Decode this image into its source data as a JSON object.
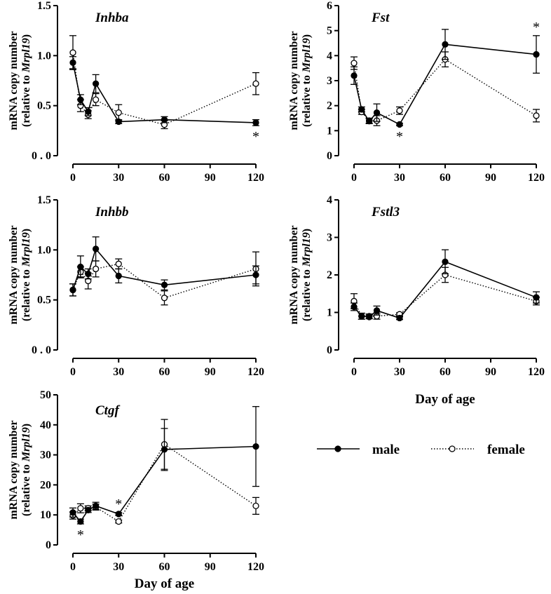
{
  "chart_data": [
    {
      "type": "line",
      "title": "Inhba",
      "xlabel": "",
      "ylabel_line1": "mRNA copy number",
      "ylabel_line2_prefix": "(relative to ",
      "ylabel_line2_italic": "Mrpl19",
      "ylabel_line2_suffix": ")",
      "x": [
        0,
        5,
        10,
        15,
        30,
        60,
        120
      ],
      "ylim": [
        0,
        1.5
      ],
      "yticks": [
        0,
        0.5,
        1.0,
        1.5
      ],
      "yticklabels": [
        "0 . 0",
        "0.5",
        "1.0",
        "1.5"
      ],
      "xticks": [
        0,
        30,
        60,
        90,
        120
      ],
      "xticklabels": [
        "0",
        "30",
        "60",
        "90",
        "120"
      ],
      "series": [
        {
          "name": "male",
          "values": [
            0.93,
            0.56,
            0.44,
            0.72,
            0.34,
            0.36,
            0.33
          ],
          "errors": [
            0.06,
            0.05,
            0.04,
            0.09,
            0.02,
            0.03,
            0.03
          ]
        },
        {
          "name": "female",
          "values": [
            1.03,
            0.5,
            0.41,
            0.56,
            0.43,
            0.31,
            0.72
          ],
          "errors": [
            0.17,
            0.06,
            0.04,
            0.06,
            0.08,
            0.04,
            0.11
          ]
        }
      ],
      "annotations": [
        {
          "x": 120,
          "text": "*",
          "position": "below"
        }
      ]
    },
    {
      "type": "line",
      "title": "Fst",
      "xlabel": "",
      "ylabel_line1": "mRNA copy number",
      "ylabel_line2_prefix": "(relative to ",
      "ylabel_line2_italic": "Mrpl19",
      "ylabel_line2_suffix": ")",
      "x": [
        0,
        5,
        10,
        15,
        30,
        60,
        120
      ],
      "ylim": [
        0,
        6
      ],
      "yticks": [
        0,
        1,
        2,
        3,
        4,
        5,
        6
      ],
      "yticklabels": [
        "0",
        "1",
        "2",
        "3",
        "4",
        "5",
        "6"
      ],
      "xticks": [
        0,
        30,
        60,
        90,
        120
      ],
      "xticklabels": [
        "0",
        "30",
        "60",
        "90",
        "120"
      ],
      "series": [
        {
          "name": "male",
          "values": [
            3.2,
            1.85,
            1.38,
            1.72,
            1.25,
            4.45,
            4.05
          ],
          "errors": [
            0.35,
            0.1,
            0.1,
            0.35,
            0.05,
            0.6,
            0.75
          ]
        },
        {
          "name": "female",
          "values": [
            3.7,
            1.75,
            1.4,
            1.4,
            1.8,
            3.85,
            1.6
          ],
          "errors": [
            0.25,
            0.1,
            0.1,
            0.2,
            0.15,
            0.3,
            0.25
          ]
        }
      ],
      "annotations": [
        {
          "x": 30,
          "text": "*",
          "position": "below"
        },
        {
          "x": 120,
          "text": "*",
          "position": "above"
        }
      ]
    },
    {
      "type": "line",
      "title": "Inhbb",
      "xlabel": "",
      "ylabel_line1": "mRNA copy number",
      "ylabel_line2_prefix": "(relative to ",
      "ylabel_line2_italic": "Mrpl19",
      "ylabel_line2_suffix": ")",
      "x": [
        0,
        5,
        10,
        15,
        30,
        60,
        120
      ],
      "ylim": [
        0,
        1.5
      ],
      "yticks": [
        0,
        0.5,
        1.0,
        1.5
      ],
      "yticklabels": [
        "0 . 0",
        "0.5",
        "1.0",
        "1.5"
      ],
      "xticks": [
        0,
        30,
        60,
        90,
        120
      ],
      "xticklabels": [
        "0",
        "30",
        "60",
        "90",
        "120"
      ],
      "series": [
        {
          "name": "male",
          "values": [
            0.6,
            0.83,
            0.76,
            1.01,
            0.74,
            0.65,
            0.75
          ],
          "errors": [
            0.06,
            0.11,
            0.05,
            0.12,
            0.07,
            0.05,
            0.09
          ]
        },
        {
          "name": "female",
          "values": [
            0.6,
            0.78,
            0.69,
            0.81,
            0.86,
            0.52,
            0.81
          ],
          "errors": [
            0.06,
            0.05,
            0.08,
            0.08,
            0.05,
            0.07,
            0.17
          ]
        }
      ],
      "annotations": []
    },
    {
      "type": "line",
      "title": "Fstl3",
      "xlabel": "Day of age",
      "ylabel_line1": "mRNA copy number",
      "ylabel_line2_prefix": "(relative to ",
      "ylabel_line2_italic": "Mrpl19",
      "ylabel_line2_suffix": ")",
      "x": [
        0,
        5,
        10,
        15,
        30,
        60,
        120
      ],
      "ylim": [
        0,
        4
      ],
      "yticks": [
        0,
        1,
        2,
        3,
        4
      ],
      "yticklabels": [
        "0",
        "1",
        "2",
        "3",
        "4"
      ],
      "xticks": [
        0,
        30,
        60,
        90,
        120
      ],
      "xticklabels": [
        "0",
        "30",
        "60",
        "90",
        "120"
      ],
      "series": [
        {
          "name": "male",
          "values": [
            1.15,
            0.9,
            0.88,
            1.05,
            0.85,
            2.35,
            1.4
          ],
          "errors": [
            0.1,
            0.08,
            0.05,
            0.12,
            0.04,
            0.32,
            0.15
          ]
        },
        {
          "name": "female",
          "values": [
            1.3,
            0.9,
            0.9,
            0.9,
            0.95,
            2.0,
            1.3
          ],
          "errors": [
            0.2,
            0.08,
            0.06,
            0.08,
            0.04,
            0.2,
            0.1
          ]
        }
      ],
      "annotations": []
    },
    {
      "type": "line",
      "title": "Ctgf",
      "xlabel": "Day of age",
      "ylabel_line1": "mRNA copy number",
      "ylabel_line2_prefix": "(relative to ",
      "ylabel_line2_italic": "Mrpl19",
      "ylabel_line2_suffix": ")",
      "x": [
        0,
        5,
        10,
        15,
        30,
        60,
        120
      ],
      "ylim": [
        0,
        50
      ],
      "yticks": [
        0,
        10,
        20,
        30,
        40,
        50
      ],
      "yticklabels": [
        "0",
        "10",
        "20",
        "30",
        "40",
        "50"
      ],
      "xticks": [
        0,
        30,
        60,
        90,
        120
      ],
      "xticklabels": [
        "0",
        "30",
        "60",
        "90",
        "120"
      ],
      "series": [
        {
          "name": "male",
          "values": [
            10.8,
            7.8,
            11.6,
            13.0,
            10.3,
            31.8,
            32.8
          ],
          "errors": [
            1.5,
            0.8,
            0.8,
            1.2,
            0.5,
            7.0,
            13.3
          ]
        },
        {
          "name": "female",
          "values": [
            9.8,
            12.2,
            12.2,
            12.6,
            7.8,
            33.5,
            13.0
          ],
          "errors": [
            1.2,
            1.5,
            0.8,
            1.0,
            0.5,
            8.3,
            2.8
          ]
        }
      ],
      "annotations": [
        {
          "x": 5,
          "text": "*",
          "position": "below"
        },
        {
          "x": 30,
          "text": "*",
          "position": "above"
        }
      ]
    }
  ],
  "legend": {
    "items": [
      {
        "label": "male",
        "marker": "filled-circle",
        "line": "solid"
      },
      {
        "label": "female",
        "marker": "open-circle",
        "line": "dotted"
      }
    ]
  }
}
